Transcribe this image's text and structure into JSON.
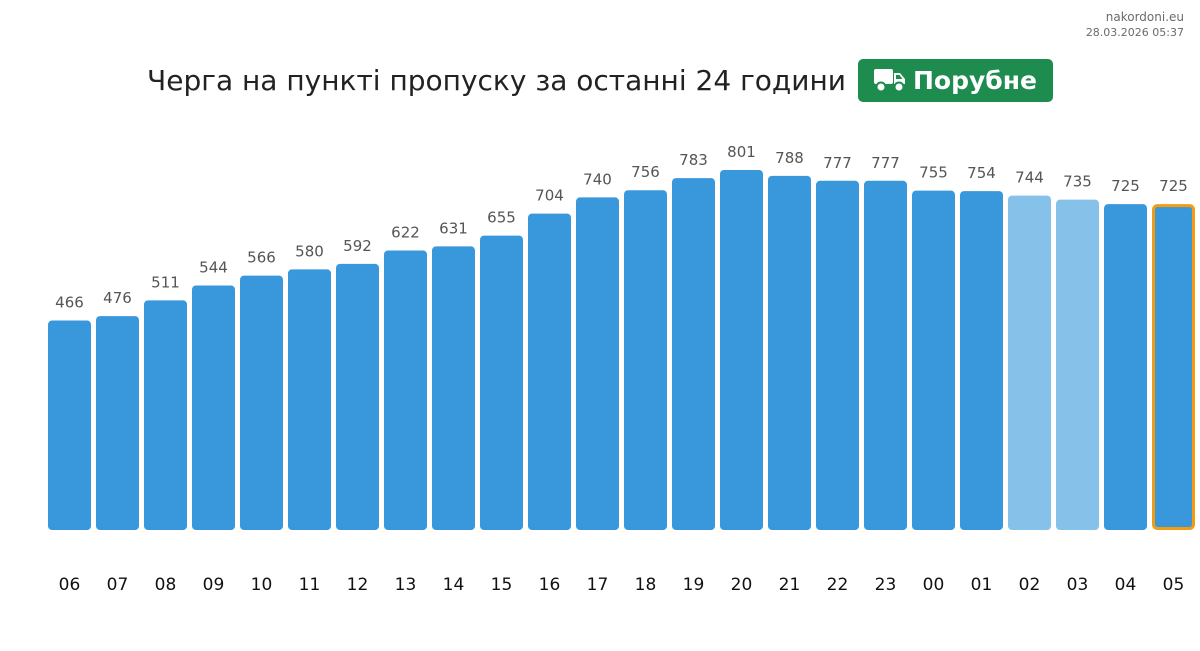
{
  "source": {
    "site": "nakordoni.eu",
    "timestamp": "28.03.2026 05:37"
  },
  "header": {
    "title": "Черга на пункті пропуску за останні 24 години",
    "crossing_name": "Порубне",
    "crossing_icon": "truck-icon"
  },
  "colors": {
    "bar": "#3998DB",
    "bar_light": "#85C1E9",
    "highlight_border": "#F39C12",
    "badge": "#1E8B4F",
    "value_label": "#555555",
    "tick_label": "#111111"
  },
  "chart_data": {
    "type": "bar",
    "categories": [
      "06",
      "07",
      "08",
      "09",
      "10",
      "11",
      "12",
      "13",
      "14",
      "15",
      "16",
      "17",
      "18",
      "19",
      "20",
      "21",
      "22",
      "23",
      "00",
      "01",
      "02",
      "03",
      "04",
      "05"
    ],
    "values": [
      466,
      476,
      511,
      544,
      566,
      580,
      592,
      622,
      631,
      655,
      704,
      740,
      756,
      783,
      801,
      788,
      777,
      777,
      755,
      754,
      744,
      735,
      725,
      725
    ],
    "light_categories": [
      "02",
      "03"
    ],
    "highlight_category": "05",
    "title": "",
    "xlabel": "",
    "ylabel": "",
    "ylim": [
      0,
      801
    ],
    "grid": false,
    "legend": "none"
  }
}
